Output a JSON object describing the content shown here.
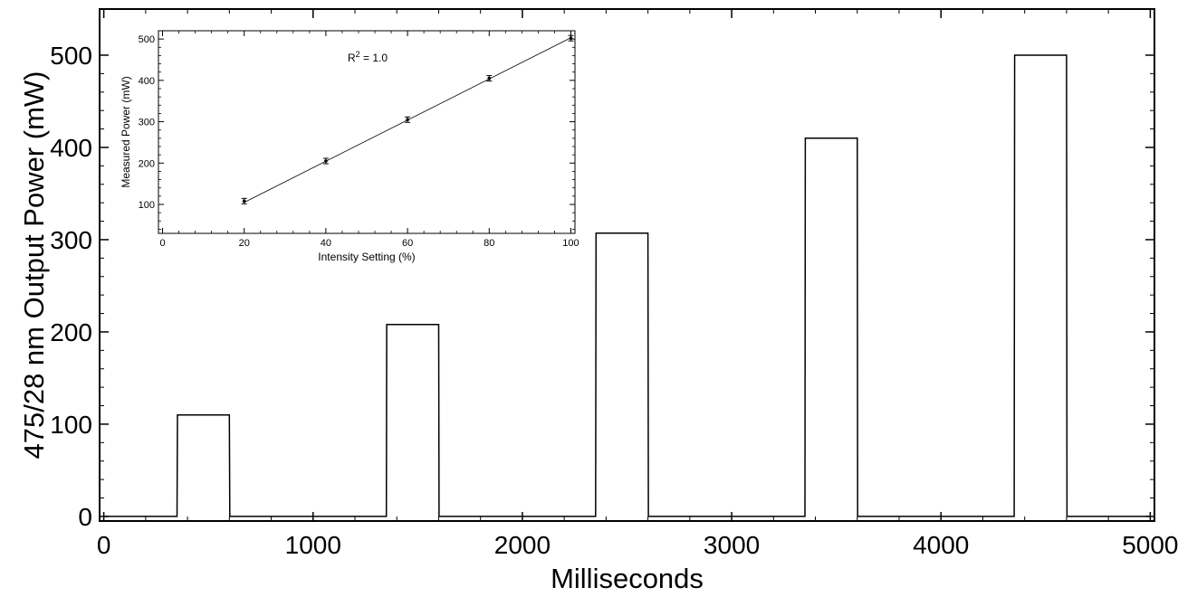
{
  "chart_data": [
    {
      "type": "line",
      "xlabel": "Milliseconds",
      "ylabel": "475/28 nm Output Power (mW)",
      "xlim": [
        -20,
        5020
      ],
      "ylim": [
        -5,
        550
      ],
      "xticks": [
        0,
        1000,
        2000,
        3000,
        4000,
        5000
      ],
      "xtick_labels": [
        "0",
        "1000",
        "2000",
        "3000",
        "4000",
        "5000"
      ],
      "yticks": [
        0,
        100,
        200,
        300,
        400,
        500
      ],
      "ytick_labels": [
        "0",
        "100",
        "200",
        "300",
        "400",
        "500"
      ],
      "grid": false,
      "series": [
        {
          "x": [
            0,
            350,
            352,
            600,
            602,
            1350,
            1352,
            1600,
            1602,
            2350,
            2352,
            2600,
            2602,
            3350,
            3352,
            3600,
            3602,
            4350,
            4352,
            4600,
            4602,
            5000
          ],
          "values": [
            0,
            0,
            110,
            110,
            0,
            0,
            208,
            208,
            0,
            0,
            307,
            307,
            0,
            0,
            410,
            410,
            0,
            0,
            500,
            500,
            0,
            0
          ]
        }
      ]
    },
    {
      "type": "scatter",
      "xlabel": "Intensity Setting (%)",
      "ylabel": "Measured Power (mW)",
      "annotation": "R",
      "annotation_sup": "2",
      "annotation_tail": " = 1.0",
      "xlim": [
        -1,
        101
      ],
      "ylim": [
        30,
        520
      ],
      "xticks": [
        0,
        20,
        40,
        60,
        80,
        100
      ],
      "xtick_labels": [
        "0",
        "20",
        "40",
        "60",
        "80",
        "100"
      ],
      "yticks": [
        100,
        200,
        300,
        400,
        500
      ],
      "ytick_labels": [
        "100",
        "200",
        "300",
        "400",
        "500"
      ],
      "grid": false,
      "series": [
        {
          "x": [
            20,
            40,
            60,
            80,
            100
          ],
          "values": [
            108,
            205,
            305,
            405,
            502
          ],
          "fit": {
            "x": [
              20,
              100
            ],
            "values": [
              105,
              503
            ]
          }
        }
      ]
    }
  ]
}
